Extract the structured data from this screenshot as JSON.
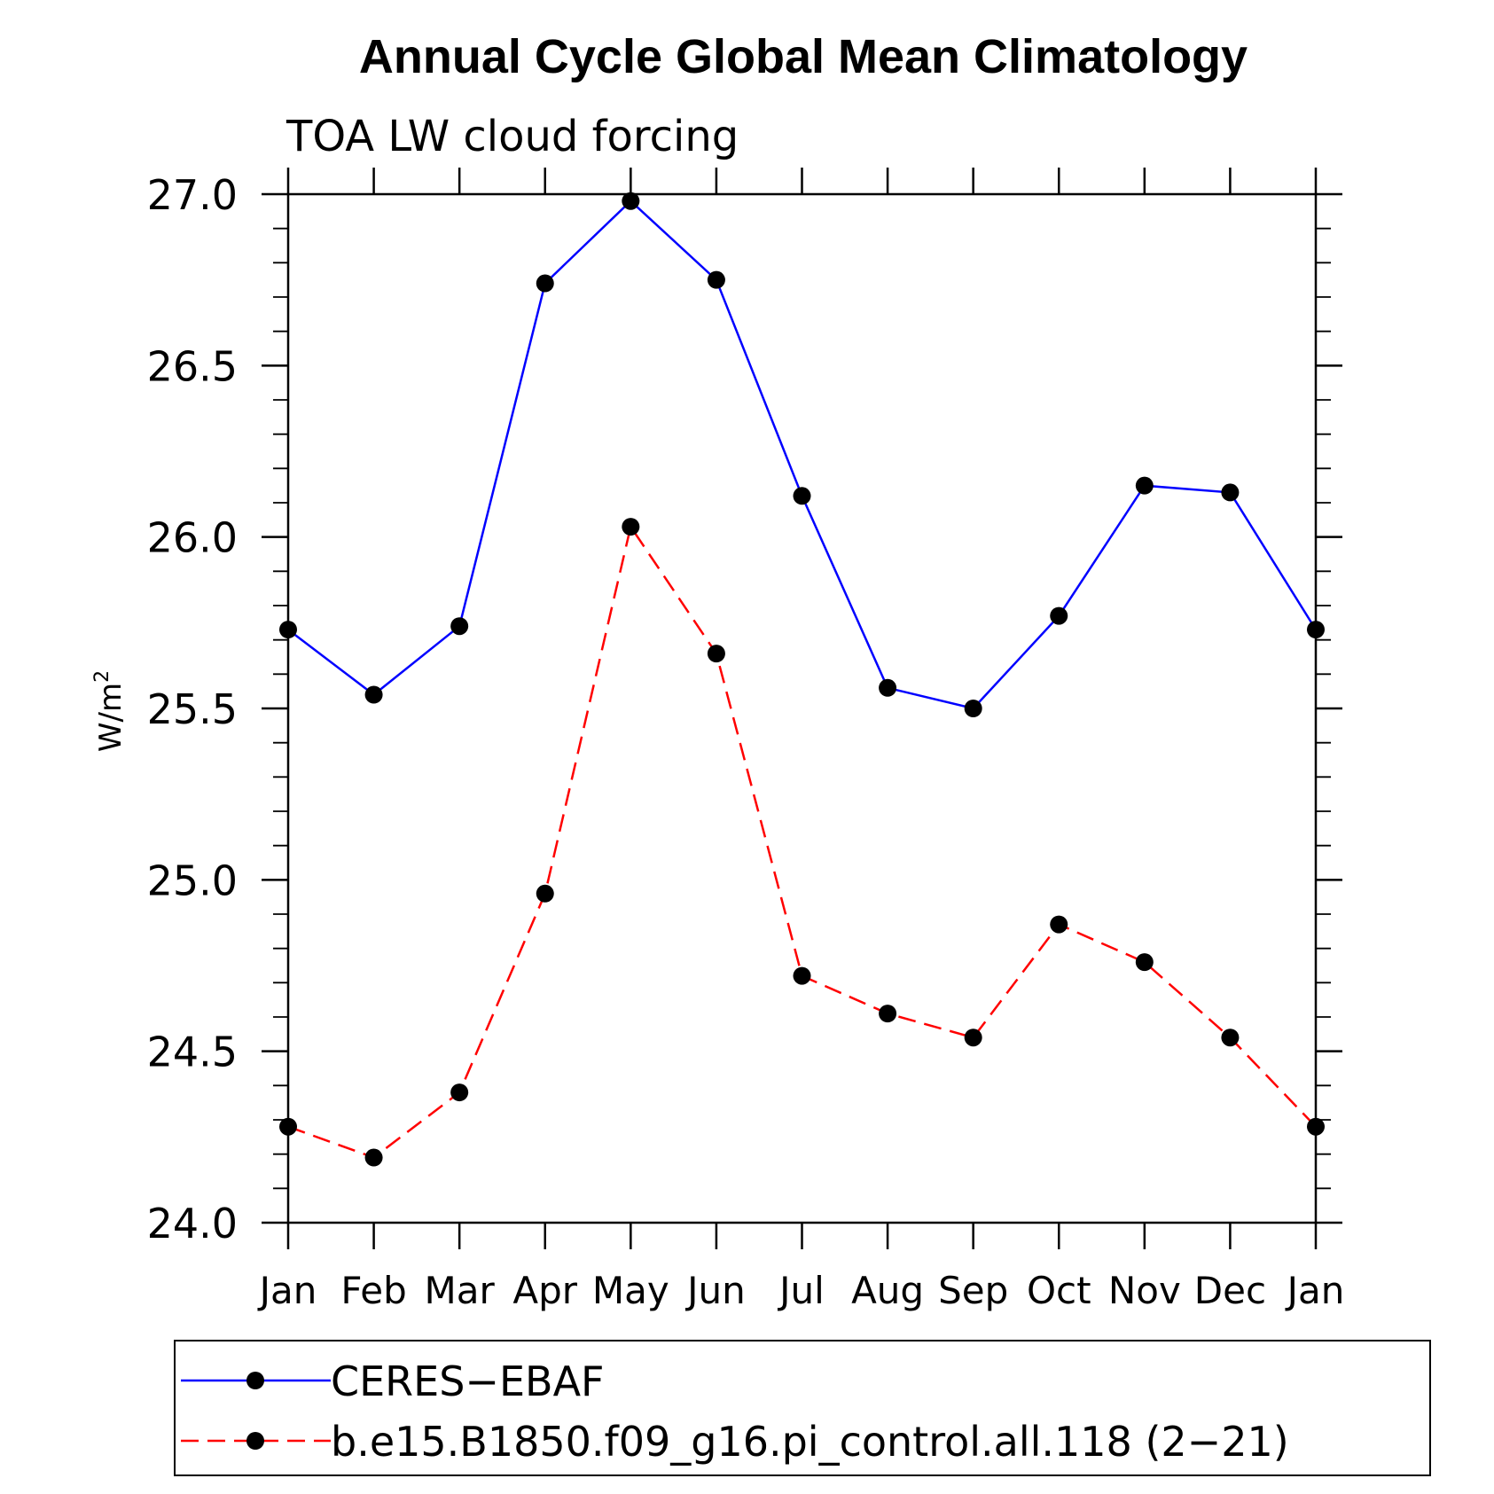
{
  "chart_data": {
    "type": "line",
    "title": "Annual Cycle Global Mean Climatology",
    "subtitle": "TOA LW cloud forcing",
    "xlabel": "",
    "ylabel": "W/m",
    "ylabel_superscript": "2",
    "categories": [
      "Jan",
      "Feb",
      "Mar",
      "Apr",
      "May",
      "Jun",
      "Jul",
      "Aug",
      "Sep",
      "Oct",
      "Nov",
      "Dec",
      "Jan"
    ],
    "ylim": [
      24.0,
      27.0
    ],
    "yticks": [
      "24.0",
      "24.5",
      "25.0",
      "25.5",
      "26.0",
      "26.5",
      "27.0"
    ],
    "grid": false,
    "legend_position": "bottom",
    "series": [
      {
        "name": "CERES−EBAF",
        "color": "#0000ff",
        "dash": "solid",
        "marker": "filled-circle",
        "values": [
          25.73,
          25.54,
          25.74,
          26.74,
          26.98,
          26.75,
          26.12,
          25.56,
          25.5,
          25.77,
          26.15,
          26.13,
          25.73
        ]
      },
      {
        "name": "b.e15.B1850.f09_g16.pi_control.all.118 (2−21)",
        "color": "#ff0000",
        "dash": "dashed",
        "marker": "filled-circle",
        "values": [
          24.28,
          24.19,
          24.38,
          24.96,
          26.03,
          25.66,
          24.72,
          24.61,
          24.54,
          24.87,
          24.76,
          24.54,
          24.28
        ]
      }
    ]
  }
}
